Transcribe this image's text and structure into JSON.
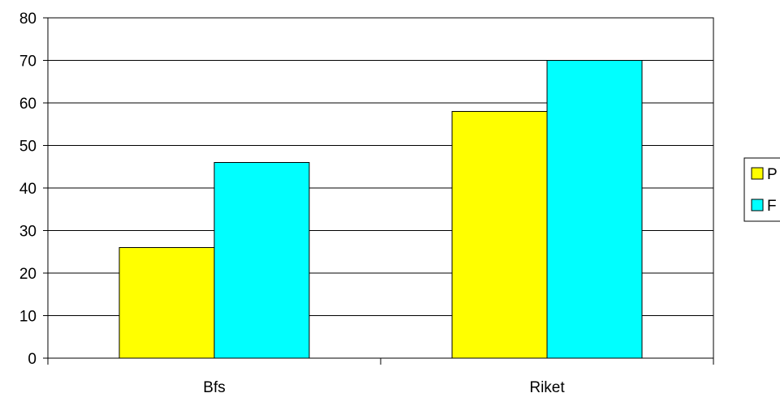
{
  "chart_data": {
    "type": "bar",
    "categories": [
      "Bfs",
      "Riket"
    ],
    "series": [
      {
        "name": "P",
        "values": [
          26,
          58
        ],
        "color": "#ffff00"
      },
      {
        "name": "F",
        "values": [
          46,
          70
        ],
        "color": "#00ffff"
      }
    ],
    "ylim": [
      0,
      80
    ],
    "yticks": [
      0,
      10,
      20,
      30,
      40,
      50,
      60,
      70,
      80
    ],
    "grid": true,
    "legend_position": "right",
    "title": "",
    "xlabel": "",
    "ylabel": ""
  }
}
